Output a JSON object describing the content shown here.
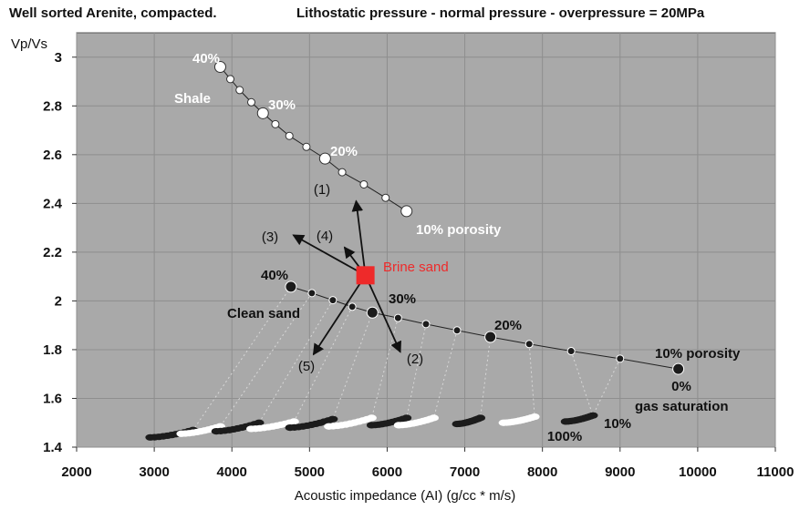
{
  "chart_data": {
    "type": "scatter",
    "title_left": "Well sorted Arenite, compacted.",
    "title_right": "Lithostatic pressure - normal pressure - overpressure = 20MPa",
    "xlabel": "Acoustic impedance (AI) (g/cc * m/s)",
    "ylabel": "Vp/Vs",
    "xlim": [
      2000,
      11000
    ],
    "ylim": [
      1.4,
      3.1
    ],
    "xticks": [
      2000,
      3000,
      4000,
      5000,
      6000,
      7000,
      8000,
      9000,
      10000,
      11000
    ],
    "yticks": [
      1.4,
      1.6,
      1.8,
      2.0,
      2.2,
      2.4,
      2.6,
      2.8,
      3.0
    ],
    "ytick_labels": [
      "1.4",
      "1.6",
      "1.8",
      "2",
      "2.2",
      "2.4",
      "2.6",
      "2.8",
      "3"
    ],
    "colors": {
      "plot_bg": "#a9a9a9",
      "grid": "#8e8e8e",
      "shale": "#ffffff",
      "sand": "#1c1c1c",
      "brine": "#ee2a2a",
      "arrow": "#111111"
    },
    "series": [
      {
        "name": "Shale",
        "marker": "white",
        "x": [
          3850,
          3980,
          4100,
          4250,
          4400,
          4560,
          4740,
          4960,
          5200,
          5420,
          5700,
          5980,
          6250
        ],
        "y": [
          2.96,
          2.91,
          2.865,
          2.815,
          2.77,
          2.725,
          2.677,
          2.632,
          2.584,
          2.528,
          2.478,
          2.423,
          2.368
        ],
        "large_points": [
          0,
          4,
          8,
          12
        ]
      },
      {
        "name": "Clean sand",
        "marker": "black",
        "x": [
          4760,
          5030,
          5300,
          5550,
          5810,
          6140,
          6500,
          6900,
          7330,
          7830,
          8370,
          9000,
          9750
        ],
        "y": [
          2.058,
          2.032,
          2.003,
          1.976,
          1.952,
          1.93,
          1.905,
          1.879,
          1.852,
          1.823,
          1.794,
          1.763,
          1.721
        ],
        "large_points": [
          0,
          4,
          8,
          12
        ]
      }
    ],
    "gas_saturation_trails": [
      {
        "start": [
          2950,
          1.44
        ],
        "end": [
          3500,
          1.47
        ],
        "color": "black"
      },
      {
        "start": [
          3350,
          1.455
        ],
        "end": [
          3850,
          1.485
        ],
        "color": "white"
      },
      {
        "start": [
          3800,
          1.465
        ],
        "end": [
          4350,
          1.5
        ],
        "color": "black"
      },
      {
        "start": [
          4250,
          1.475
        ],
        "end": [
          4800,
          1.505
        ],
        "color": "white"
      },
      {
        "start": [
          4750,
          1.48
        ],
        "end": [
          5300,
          1.515
        ],
        "color": "black"
      },
      {
        "start": [
          5250,
          1.485
        ],
        "end": [
          5800,
          1.52
        ],
        "color": "white"
      },
      {
        "start": [
          5800,
          1.49
        ],
        "end": [
          6250,
          1.52
        ],
        "color": "black"
      },
      {
        "start": [
          6150,
          1.49
        ],
        "end": [
          6600,
          1.52
        ],
        "color": "white"
      },
      {
        "start": [
          6900,
          1.495
        ],
        "end": [
          7200,
          1.52
        ],
        "color": "black"
      },
      {
        "start": [
          7500,
          1.5
        ],
        "end": [
          7900,
          1.525
        ],
        "color": "white"
      },
      {
        "start": [
          8300,
          1.505
        ],
        "end": [
          8650,
          1.53
        ],
        "color": "black"
      }
    ],
    "tie_lines": [
      [
        [
          4760,
          2.058
        ],
        [
          3500,
          1.47
        ]
      ],
      [
        [
          5030,
          2.032
        ],
        [
          3850,
          1.485
        ]
      ],
      [
        [
          5300,
          2.003
        ],
        [
          4350,
          1.5
        ]
      ],
      [
        [
          5550,
          1.976
        ],
        [
          4800,
          1.505
        ]
      ],
      [
        [
          5810,
          1.952
        ],
        [
          5300,
          1.515
        ]
      ],
      [
        [
          6140,
          1.93
        ],
        [
          5800,
          1.52
        ]
      ],
      [
        [
          6500,
          1.905
        ],
        [
          6250,
          1.52
        ]
      ],
      [
        [
          6900,
          1.879
        ],
        [
          6600,
          1.52
        ]
      ],
      [
        [
          7330,
          1.852
        ],
        [
          7200,
          1.52
        ]
      ],
      [
        [
          7830,
          1.823
        ],
        [
          7900,
          1.525
        ]
      ],
      [
        [
          8370,
          1.794
        ],
        [
          8650,
          1.53
        ]
      ],
      [
        [
          9000,
          1.763
        ],
        [
          8650,
          1.53
        ]
      ]
    ],
    "brine_sand": {
      "x": 5720,
      "y": 2.105,
      "label": "Brine sand"
    },
    "arrows": [
      {
        "label": "(1)",
        "to": [
          5600,
          2.41
        ]
      },
      {
        "label": "(2)",
        "to": [
          6170,
          1.79
        ]
      },
      {
        "label": "(3)",
        "to": [
          4790,
          2.27
        ]
      },
      {
        "label": "(4)",
        "to": [
          5450,
          2.22
        ]
      },
      {
        "label": "(5)",
        "to": [
          5050,
          1.78
        ]
      }
    ],
    "annotations": {
      "shale_40": "40%",
      "shale_label": "Shale",
      "shale_30": "30%",
      "shale_20": "20%",
      "shale_10": "10% porosity",
      "sand_40": "40%",
      "sand_label": "Clean sand",
      "sand_30": "30%",
      "sand_20": "20%",
      "sand_10": "10% porosity",
      "gas_0": "0%",
      "gas_label": "gas saturation",
      "gas_100": "100%",
      "gas_10": "10%"
    }
  }
}
